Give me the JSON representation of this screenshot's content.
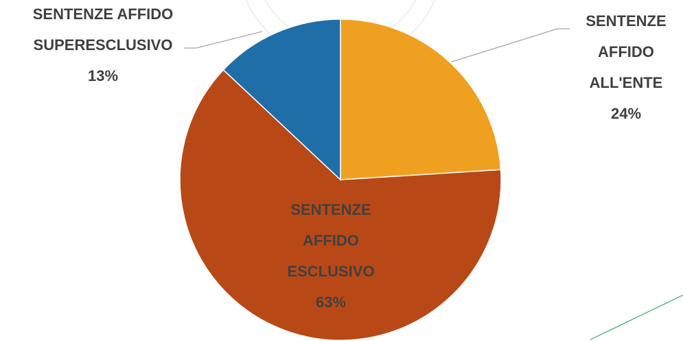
{
  "chart_data": {
    "type": "pie",
    "categories": [
      "SENTENZE AFFIDO ALL'ENTE",
      "SENTENZE AFFIDO ESCLUSIVO",
      "SENTENZE AFFIDO SUPERESCLUSIVO"
    ],
    "values": [
      24,
      63,
      13
    ],
    "value_labels": [
      "24%",
      "63%",
      "13%"
    ],
    "colors": [
      "#F0A020",
      "#B84917",
      "#1F6EA8"
    ]
  }
}
